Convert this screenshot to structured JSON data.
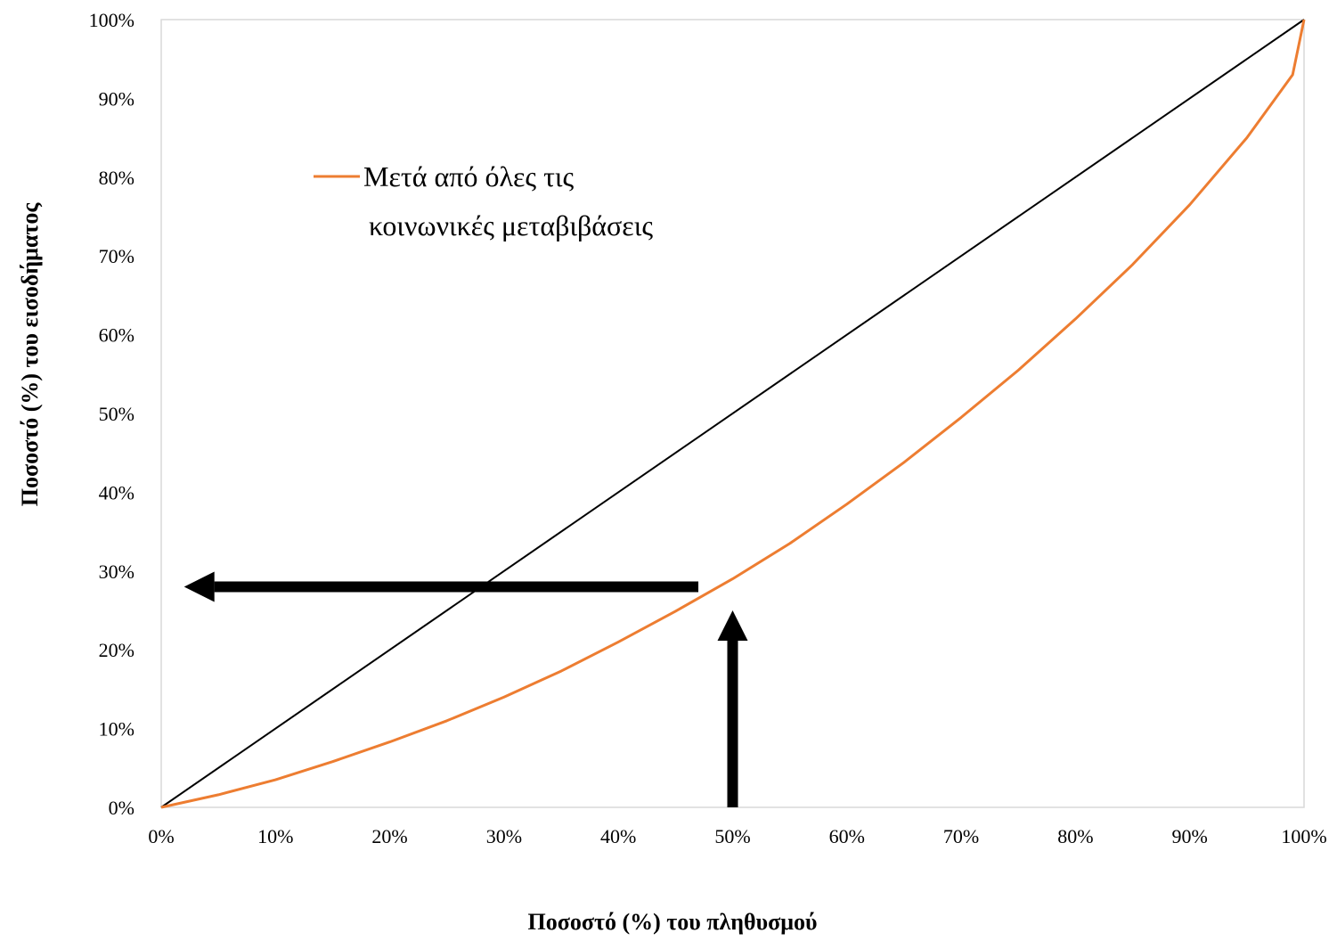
{
  "chart_data": {
    "type": "line",
    "xlabel": "Ποσοστό (%) του πληθυσμού",
    "ylabel": "Ποσοστό (%) του εισοδήματος",
    "xlim": [
      0,
      100
    ],
    "ylim": [
      0,
      100
    ],
    "x_ticks": [
      "0%",
      "10%",
      "20%",
      "30%",
      "40%",
      "50%",
      "60%",
      "70%",
      "80%",
      "90%",
      "100%"
    ],
    "y_ticks": [
      "0%",
      "10%",
      "20%",
      "30%",
      "40%",
      "50%",
      "60%",
      "70%",
      "80%",
      "90%",
      "100%"
    ],
    "grid": false,
    "legend_position": "top-left",
    "series": [
      {
        "name": "Μετά από όλες τις κοινωνικές μεταβιβάσεις",
        "legend_lines": [
          "Μετά από όλες τις",
          "κοινωνικές μεταβιβάσεις"
        ],
        "color": "#ed7d31",
        "x": [
          0,
          5,
          10,
          15,
          20,
          25,
          30,
          35,
          40,
          45,
          50,
          55,
          60,
          65,
          70,
          75,
          80,
          85,
          90,
          95,
          99,
          100
        ],
        "y": [
          0,
          1.6,
          3.5,
          5.8,
          8.3,
          11,
          14,
          17.3,
          21,
          24.9,
          29,
          33.5,
          38.5,
          43.8,
          49.5,
          55.5,
          62,
          68.9,
          76.5,
          85,
          93,
          100
        ]
      },
      {
        "color": "#000000",
        "x": [
          0,
          100
        ],
        "y": [
          0,
          100
        ]
      }
    ],
    "annotations": [
      {
        "type": "arrow",
        "direction": "left",
        "from": [
          47,
          28
        ],
        "to": [
          2,
          28
        ],
        "color": "#000000"
      },
      {
        "type": "arrow",
        "direction": "up",
        "from": [
          50,
          0
        ],
        "to": [
          50,
          25
        ],
        "color": "#000000"
      }
    ]
  }
}
